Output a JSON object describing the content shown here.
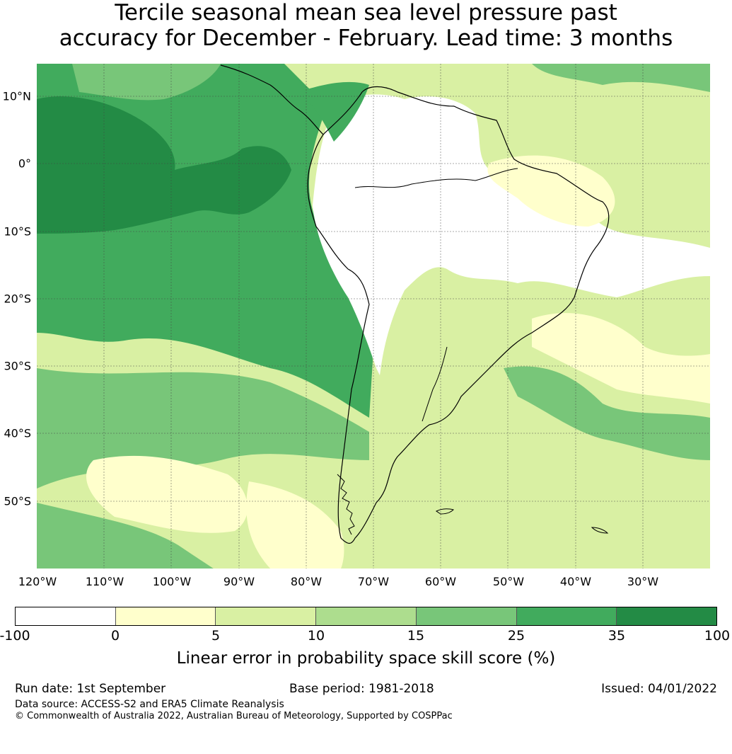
{
  "title": {
    "line1": "Tercile seasonal mean sea level pressure past",
    "line2": "accuracy for December - February. Lead time: 3 months"
  },
  "map": {
    "lat_labels": [
      "10°N",
      "0°",
      "10°S",
      "20°S",
      "30°S",
      "40°S",
      "50°S"
    ],
    "lon_labels": [
      "120°W",
      "110°W",
      "100°W",
      "90°W",
      "80°W",
      "70°W",
      "60°W",
      "50°W",
      "40°W",
      "30°W"
    ],
    "colors": {
      "ocean_dark": "#238b45",
      "ocean_mid": "#41ab5d",
      "ocean_light": "#78c679",
      "pale_green": "#addd8e",
      "light_yellow_green": "#d9f0a3",
      "pale_yellow": "#ffffcc",
      "no_skill": "#ffffff",
      "coastline": "#000000"
    }
  },
  "colorbar": {
    "ticks": [
      "-100",
      "0",
      "5",
      "10",
      "15",
      "25",
      "35",
      "100"
    ],
    "colors": [
      "#ffffff",
      "#ffffcc",
      "#d9f0a3",
      "#addd8e",
      "#78c679",
      "#41ab5d",
      "#238b45"
    ],
    "label": "Linear error in probability space skill score (%)"
  },
  "footer": {
    "run_date": "Run date: 1st September",
    "base_period": "Base period: 1981-2018",
    "issued": "Issued: 04/01/2022",
    "data_source": "Data source: ACCESS-S2 and ERA5 Climate Reanalysis",
    "copyright": "© Commonwealth of Australia 2022, Australian Bureau of Meteorology, Supported by COSPPac"
  }
}
